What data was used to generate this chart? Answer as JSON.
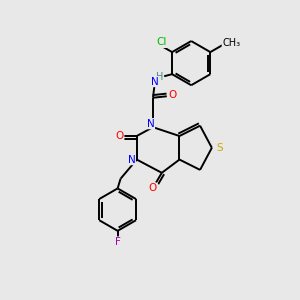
{
  "background_color": "#e8e8e8",
  "bond_color": "#000000",
  "atom_colors": {
    "N": "#0000ff",
    "O": "#ff0000",
    "S": "#ccaa00",
    "Cl": "#00bb00",
    "F": "#aa00aa",
    "H": "#448888",
    "C": "#000000"
  },
  "figsize": [
    3.0,
    3.0
  ],
  "dpi": 100
}
